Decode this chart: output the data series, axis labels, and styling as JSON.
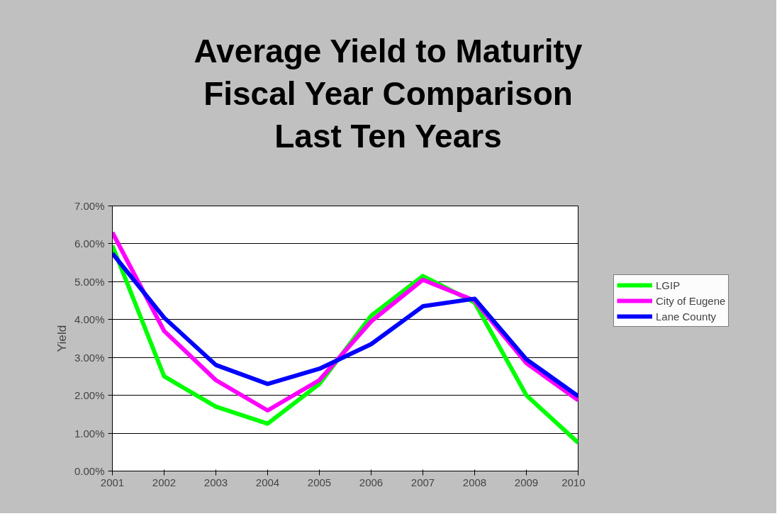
{
  "chart_data": {
    "type": "line",
    "title": "Average Yield to Maturity\nFiscal Year Comparison\nLast Ten Years",
    "ylabel": "Yield",
    "categories": [
      "2001",
      "2002",
      "2003",
      "2004",
      "2005",
      "2006",
      "2007",
      "2008",
      "2009",
      "2010"
    ],
    "series": [
      {
        "name": "LGIP",
        "color": "#00ff00",
        "values": [
          5.95,
          2.5,
          1.7,
          1.25,
          2.3,
          4.1,
          5.15,
          4.45,
          2.0,
          0.75
        ]
      },
      {
        "name": "City of Eugene",
        "color": "#ff00ff",
        "values": [
          6.3,
          3.7,
          2.4,
          1.6,
          2.4,
          3.95,
          5.05,
          4.5,
          2.85,
          1.87
        ]
      },
      {
        "name": "Lane County",
        "color": "#0000ff",
        "values": [
          5.75,
          4.05,
          2.8,
          2.3,
          2.7,
          3.35,
          4.35,
          4.55,
          2.95,
          1.98
        ]
      }
    ],
    "ylim": [
      0,
      7
    ],
    "yticks": [
      {
        "value": 0,
        "label": "0.00%"
      },
      {
        "value": 1,
        "label": "1.00%"
      },
      {
        "value": 2,
        "label": "2.00%"
      },
      {
        "value": 3,
        "label": "3.00%"
      },
      {
        "value": 4,
        "label": "4.00%"
      },
      {
        "value": 5,
        "label": "5.00%"
      },
      {
        "value": 6,
        "label": "6.00%"
      },
      {
        "value": 7,
        "label": "7.00%"
      }
    ],
    "grid": "y",
    "legend": "right",
    "marker": "none",
    "line_style": "solid"
  }
}
